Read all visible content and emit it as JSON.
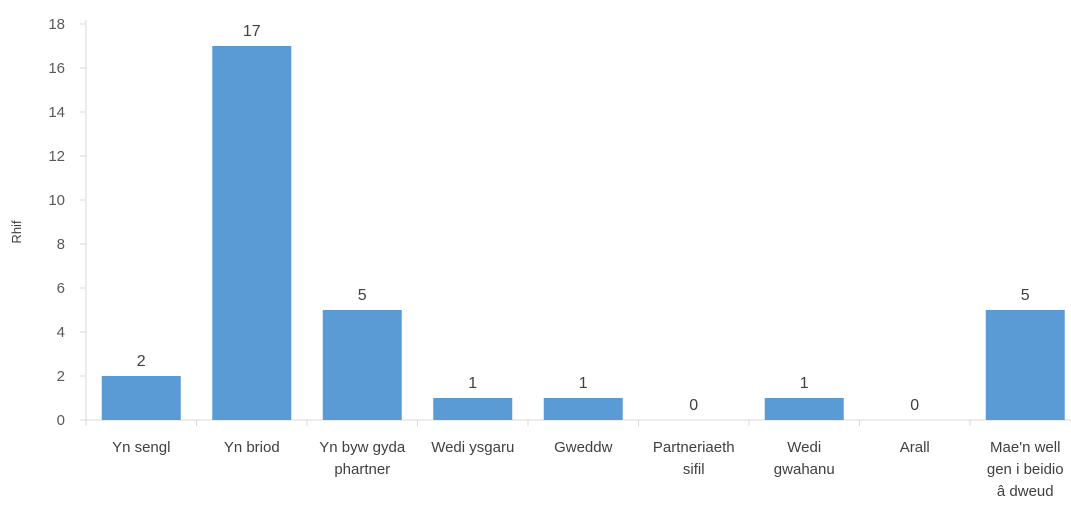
{
  "chart_data": {
    "type": "bar",
    "categories": [
      [
        "Yn sengl"
      ],
      [
        "Yn briod"
      ],
      [
        "Yn byw gyda",
        "phartner"
      ],
      [
        "Wedi ysgaru"
      ],
      [
        "Gweddw"
      ],
      [
        "Partneriaeth",
        "sifil"
      ],
      [
        "Wedi",
        "gwahanu"
      ],
      [
        "Arall"
      ],
      [
        "Mae'n well",
        "gen i beidio",
        "â dweud"
      ]
    ],
    "values": [
      2,
      17,
      5,
      1,
      1,
      0,
      1,
      0,
      5
    ],
    "ylabel": "Rhif",
    "ylim": [
      0,
      18
    ],
    "yticks": [
      0,
      2,
      4,
      6,
      8,
      10,
      12,
      14,
      16,
      18
    ],
    "grid": false,
    "bar_color": "#5B9BD5",
    "axis_color": "#D9D9D9"
  }
}
